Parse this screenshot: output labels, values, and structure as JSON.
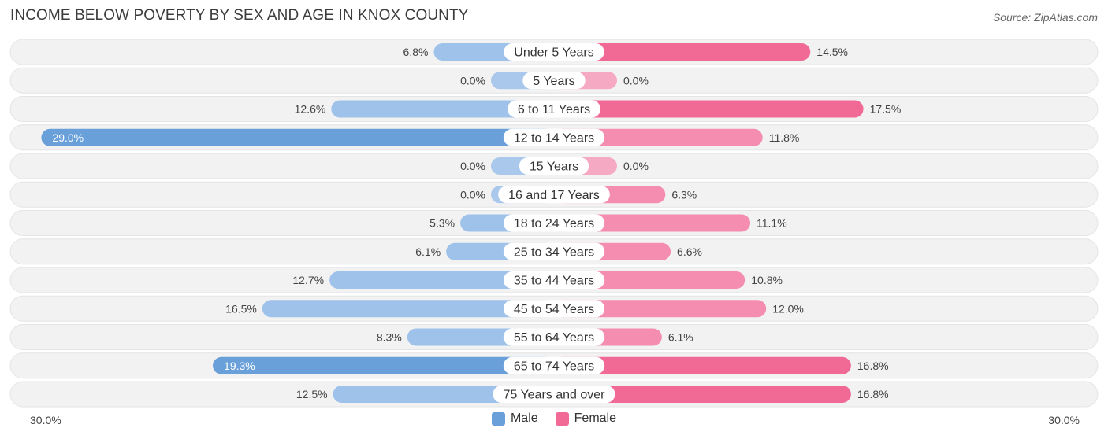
{
  "title": "INCOME BELOW POVERTY BY SEX AND AGE IN KNOX COUNTY",
  "source": "Source: ZipAtlas.com",
  "colors": {
    "male": "#6aa0da",
    "male_light": "#a9c8ec",
    "female": "#f06a95",
    "female_light": "#f6a9c2",
    "row_bg": "#f2f2f2"
  },
  "legend": {
    "male": "Male",
    "female": "Female"
  },
  "axis": {
    "left_label": "30.0%",
    "right_label": "30.0%"
  },
  "chart_data": {
    "type": "bar",
    "orientation": "horizontal-diverging",
    "title": "INCOME BELOW POVERTY BY SEX AND AGE IN KNOX COUNTY",
    "xlim": [
      -30,
      30
    ],
    "categories": [
      "Under 5 Years",
      "5 Years",
      "6 to 11 Years",
      "12 to 14 Years",
      "15 Years",
      "16 and 17 Years",
      "18 to 24 Years",
      "25 to 34 Years",
      "35 to 44 Years",
      "45 to 54 Years",
      "55 to 64 Years",
      "65 to 74 Years",
      "75 Years and over"
    ],
    "series": [
      {
        "name": "Male",
        "values": [
          6.8,
          0.0,
          12.6,
          29.0,
          0.0,
          0.0,
          5.3,
          6.1,
          12.7,
          16.5,
          8.3,
          19.3,
          12.5
        ],
        "labels": [
          "6.8%",
          "0.0%",
          "12.6%",
          "29.0%",
          "0.0%",
          "0.0%",
          "5.3%",
          "6.1%",
          "12.7%",
          "16.5%",
          "8.3%",
          "19.3%",
          "12.5%"
        ]
      },
      {
        "name": "Female",
        "values": [
          14.5,
          0.0,
          17.5,
          11.8,
          0.0,
          6.3,
          11.1,
          6.6,
          10.8,
          12.0,
          6.1,
          16.8,
          16.8
        ],
        "labels": [
          "14.5%",
          "0.0%",
          "17.5%",
          "11.8%",
          "0.0%",
          "6.3%",
          "11.1%",
          "6.6%",
          "10.8%",
          "12.0%",
          "6.1%",
          "16.8%",
          "16.8%"
        ]
      }
    ]
  }
}
